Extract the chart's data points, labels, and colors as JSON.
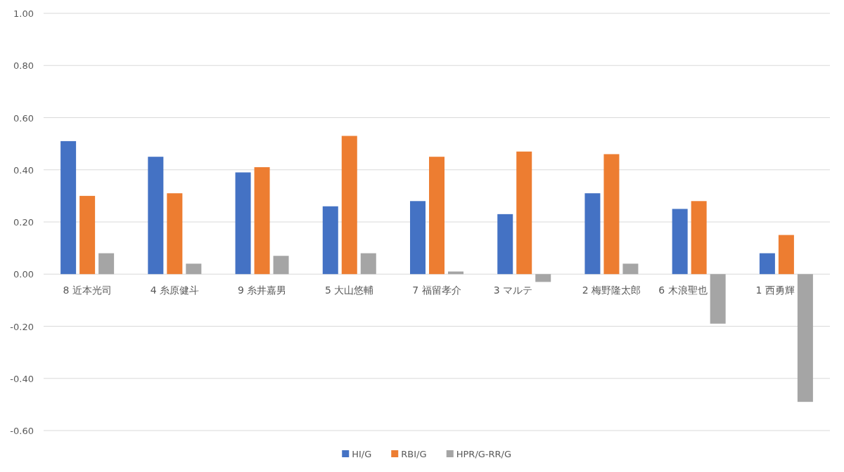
{
  "chart_data": {
    "type": "bar",
    "categories": [
      "8 近本光司",
      "4 糸原健斗",
      "9 糸井嘉男",
      "5 大山悠輔",
      "7 福留孝介",
      "3 マルテ",
      "2 梅野隆太郎",
      "6 木浪聖也",
      "1 西勇輝"
    ],
    "series": [
      {
        "name": "HI/G",
        "color": "#4472c4",
        "values": [
          0.51,
          0.45,
          0.39,
          0.26,
          0.28,
          0.23,
          0.31,
          0.25,
          0.08
        ]
      },
      {
        "name": "RBI/G",
        "color": "#ed7d31",
        "values": [
          0.3,
          0.31,
          0.41,
          0.53,
          0.45,
          0.47,
          0.46,
          0.28,
          0.15
        ]
      },
      {
        "name": "HPR/G-RR/G",
        "color": "#a5a5a5",
        "values": [
          0.08,
          0.04,
          0.07,
          0.08,
          0.01,
          -0.03,
          0.04,
          -0.19,
          -0.49
        ]
      }
    ],
    "ylim": [
      -0.6,
      1.0
    ],
    "yticks": [
      {
        "value": -0.6,
        "label": "-0.60"
      },
      {
        "value": -0.4,
        "label": "-0.40"
      },
      {
        "value": -0.2,
        "label": "-0.20"
      },
      {
        "value": 0,
        "label": "0.00"
      },
      {
        "value": 0.2,
        "label": "0.20"
      },
      {
        "value": 0.4,
        "label": "0.40"
      },
      {
        "value": 0.6,
        "label": "0.60"
      },
      {
        "value": 0.8,
        "label": "0.80"
      },
      {
        "value": 1.0,
        "label": "1.00"
      }
    ],
    "grid": "y",
    "legend": "bottom"
  }
}
